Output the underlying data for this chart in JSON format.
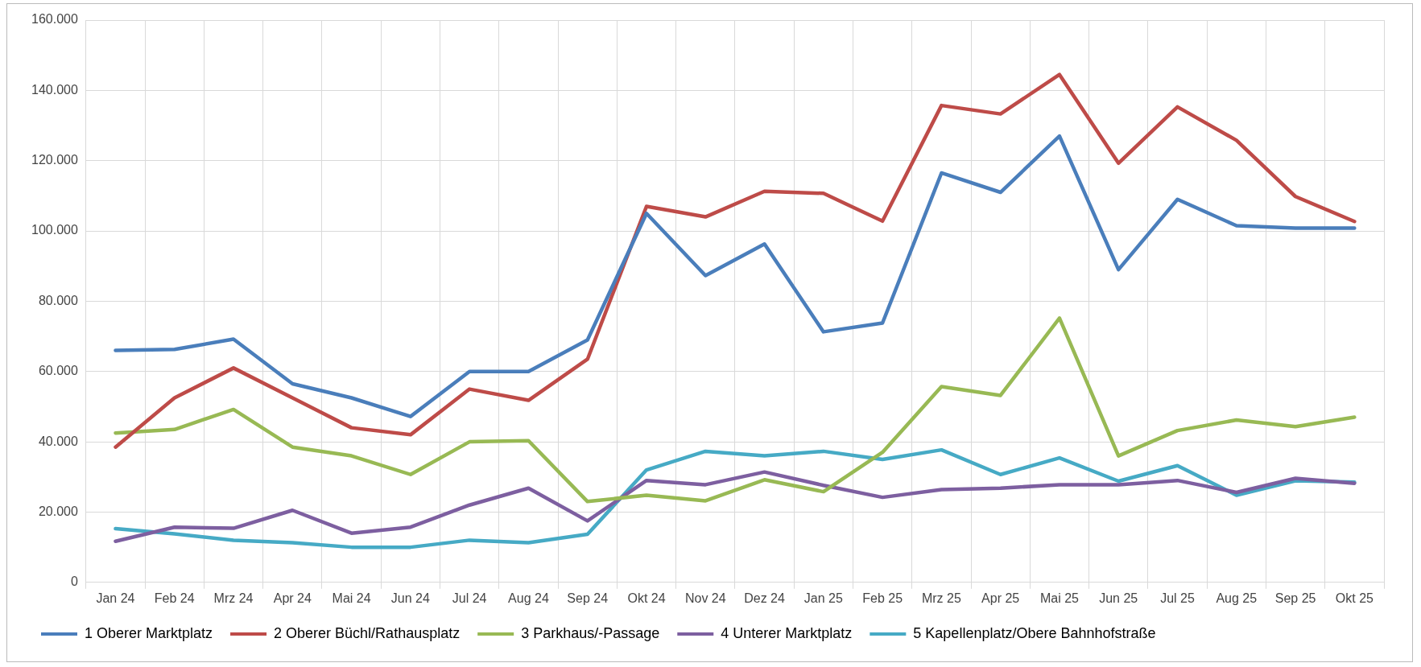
{
  "chart_data": {
    "type": "line",
    "categories": [
      "Jan 24",
      "Feb 24",
      "Mrz 24",
      "Apr 24",
      "Mai 24",
      "Jun 24",
      "Jul 24",
      "Aug 24",
      "Sep 24",
      "Okt 24",
      "Nov 24",
      "Dez 24",
      "Jan 25",
      "Feb 25",
      "Mrz 25",
      "Apr 25",
      "Mai 25",
      "Jun 25",
      "Jul 25",
      "Aug 25",
      "Sep 25",
      "Okt 25"
    ],
    "series": [
      {
        "name": "1 Oberer Marktplatz",
        "color": "#4a7ebb",
        "values": [
          66000,
          66300,
          69200,
          56500,
          52500,
          47200,
          60000,
          60000,
          69000,
          105000,
          87300,
          96300,
          71300,
          73800,
          116500,
          111000,
          127000,
          89000,
          109000,
          101500,
          100800,
          100800
        ]
      },
      {
        "name": "2 Oberer Büchl/Rathausplatz",
        "color": "#be4b48",
        "values": [
          38500,
          52500,
          61000,
          52500,
          44000,
          42000,
          55000,
          51800,
          63500,
          107000,
          104000,
          111300,
          110700,
          102800,
          135700,
          133300,
          144500,
          119300,
          135300,
          125800,
          109800,
          102700
        ]
      },
      {
        "name": "3 Parkhaus/-Passage",
        "color": "#98b954",
        "values": [
          42500,
          43500,
          49200,
          38500,
          36000,
          30700,
          40000,
          40300,
          23000,
          24800,
          23200,
          29200,
          25800,
          37000,
          55700,
          53200,
          75200,
          36000,
          43200,
          46200,
          44300,
          47000
        ]
      },
      {
        "name": "4 Unterer Marktplatz",
        "color": "#7d5fa0",
        "values": [
          11700,
          15700,
          15400,
          20500,
          14000,
          15700,
          22000,
          26800,
          17500,
          29000,
          27800,
          31400,
          27600,
          24200,
          26400,
          26800,
          27800,
          27800,
          29000,
          25600,
          29600,
          28200
        ]
      },
      {
        "name": "5 Kapellenplatz/Obere Bahnhofstraße",
        "color": "#46aac5",
        "values": [
          15300,
          13800,
          12000,
          11300,
          10000,
          10000,
          12000,
          11300,
          13700,
          32000,
          37300,
          36000,
          37300,
          35000,
          37700,
          30700,
          35400,
          28800,
          33200,
          24800,
          28900,
          28500
        ]
      }
    ],
    "ylim": [
      0,
      160000
    ],
    "yticks": [
      {
        "value": 0,
        "label": "0"
      },
      {
        "value": 20000,
        "label": "20.000"
      },
      {
        "value": 40000,
        "label": "40.000"
      },
      {
        "value": 60000,
        "label": "60.000"
      },
      {
        "value": 80000,
        "label": "80.000"
      },
      {
        "value": 100000,
        "label": "100.000"
      },
      {
        "value": 120000,
        "label": "120.000"
      },
      {
        "value": 140000,
        "label": "140.000"
      },
      {
        "value": 160000,
        "label": "160.000"
      }
    ],
    "grid": true,
    "legend": "bottom",
    "marker": "none",
    "line_style": "solid"
  }
}
